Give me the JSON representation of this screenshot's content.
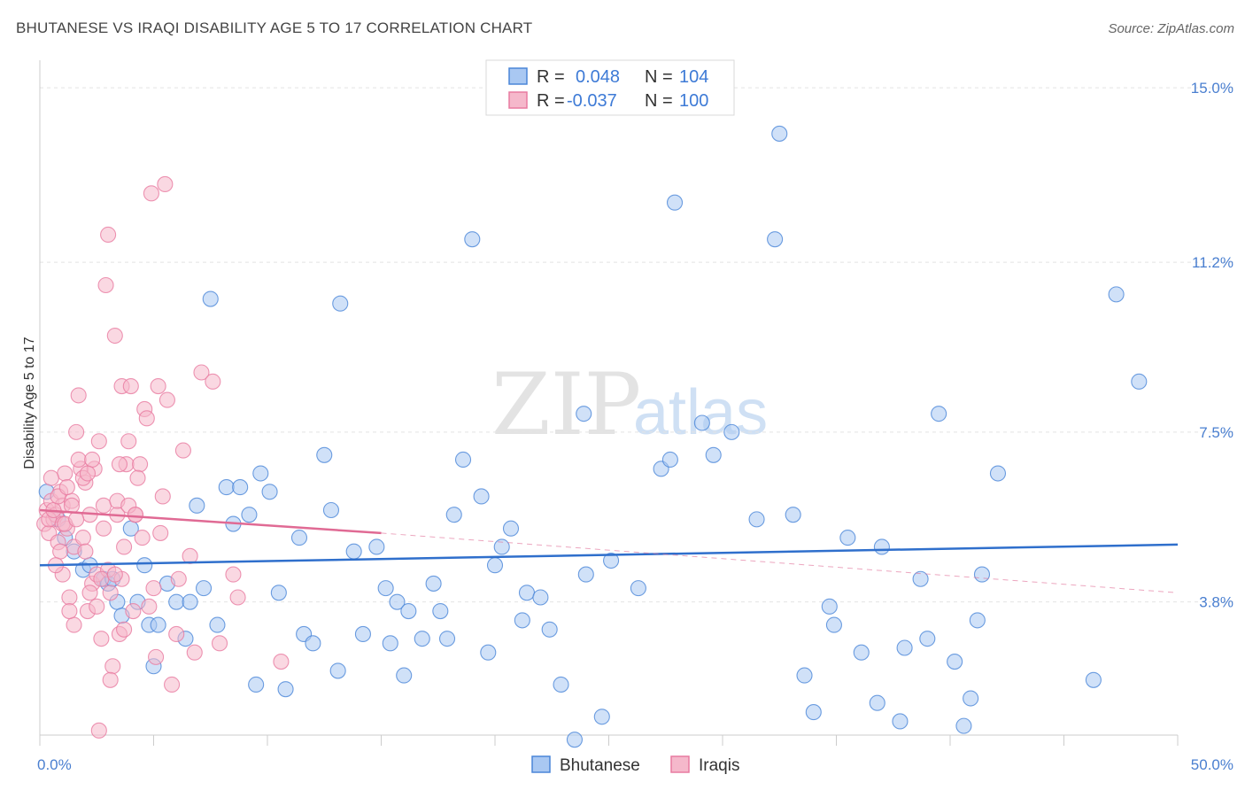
{
  "title": "BHUTANESE VS IRAQI DISABILITY AGE 5 TO 17 CORRELATION CHART",
  "source": "Source: ZipAtlas.com",
  "watermark": {
    "zip": "ZIP",
    "atlas": "atlas"
  },
  "colors": {
    "blue": "#4a86d8",
    "pink": "#e87aa0",
    "blue_fill": "#a9c8f2",
    "pink_fill": "#f5b8cb",
    "blue_line": "#2f6fcc",
    "pink_line": "#e06a94"
  },
  "legend_top": {
    "rows": [
      {
        "r_label": "R = ",
        "r_value": "0.048",
        "n_label": "N = ",
        "n_value": "104"
      },
      {
        "r_label": "R = ",
        "r_value": "-0.037",
        "n_label": "N = ",
        "n_value": "100"
      }
    ]
  },
  "legend_bottom": {
    "items": [
      "Bhutanese",
      "Iraqis"
    ]
  },
  "chart_data": {
    "type": "scatter",
    "ylabel": "Disability Age 5 to 17",
    "xlim": [
      0,
      50
    ],
    "ylim": [
      0.9,
      15.6
    ],
    "x_tick_labels": [
      "0.0%",
      "50.0%"
    ],
    "y_ticks": [
      3.8,
      7.5,
      11.2,
      15.0
    ],
    "y_tick_labels": [
      "3.8%",
      "7.5%",
      "11.2%",
      "15.0%"
    ],
    "grid": true,
    "legend_placement": "top-center",
    "series": [
      {
        "name": "Bhutanese",
        "r": 0.048,
        "n": 104,
        "trend": {
          "x": [
            0,
            50
          ],
          "y": [
            4.6,
            5.05
          ]
        },
        "points": [
          [
            0.3,
            6.2
          ],
          [
            0.8,
            5.6
          ],
          [
            1.1,
            5.2
          ],
          [
            1.5,
            4.9
          ],
          [
            1.9,
            4.5
          ],
          [
            2.2,
            4.6
          ],
          [
            2.8,
            4.3
          ],
          [
            3.0,
            4.2
          ],
          [
            3.2,
            4.3
          ],
          [
            3.4,
            3.8
          ],
          [
            3.6,
            3.5
          ],
          [
            4.0,
            5.4
          ],
          [
            4.3,
            3.8
          ],
          [
            4.6,
            4.6
          ],
          [
            4.8,
            3.3
          ],
          [
            5.0,
            2.4
          ],
          [
            5.2,
            3.3
          ],
          [
            5.6,
            4.2
          ],
          [
            6.0,
            3.8
          ],
          [
            6.4,
            3.0
          ],
          [
            6.6,
            3.8
          ],
          [
            6.9,
            5.9
          ],
          [
            7.2,
            4.1
          ],
          [
            7.5,
            10.4
          ],
          [
            7.8,
            3.3
          ],
          [
            8.2,
            6.3
          ],
          [
            8.5,
            5.5
          ],
          [
            8.8,
            6.3
          ],
          [
            9.2,
            5.7
          ],
          [
            9.5,
            2.0
          ],
          [
            9.7,
            6.6
          ],
          [
            10.1,
            6.2
          ],
          [
            10.5,
            4.0
          ],
          [
            10.8,
            1.9
          ],
          [
            11.4,
            5.2
          ],
          [
            11.6,
            3.1
          ],
          [
            12.0,
            2.9
          ],
          [
            12.5,
            7.0
          ],
          [
            12.8,
            5.8
          ],
          [
            13.1,
            2.3
          ],
          [
            13.2,
            10.3
          ],
          [
            13.8,
            4.9
          ],
          [
            14.2,
            3.1
          ],
          [
            14.8,
            5.0
          ],
          [
            15.2,
            4.1
          ],
          [
            15.4,
            2.9
          ],
          [
            15.7,
            3.8
          ],
          [
            16.0,
            2.2
          ],
          [
            16.2,
            3.6
          ],
          [
            16.8,
            3.0
          ],
          [
            17.3,
            4.2
          ],
          [
            17.6,
            3.6
          ],
          [
            17.9,
            3.0
          ],
          [
            18.2,
            5.7
          ],
          [
            18.6,
            6.9
          ],
          [
            19.0,
            11.7
          ],
          [
            19.4,
            6.1
          ],
          [
            19.7,
            2.7
          ],
          [
            20.0,
            4.6
          ],
          [
            20.3,
            5.0
          ],
          [
            20.7,
            5.4
          ],
          [
            21.2,
            3.4
          ],
          [
            21.4,
            4.0
          ],
          [
            22.0,
            3.9
          ],
          [
            22.4,
            3.2
          ],
          [
            22.9,
            2.0
          ],
          [
            23.5,
            0.8
          ],
          [
            23.9,
            7.9
          ],
          [
            24.0,
            4.4
          ],
          [
            24.7,
            1.3
          ],
          [
            25.1,
            4.7
          ],
          [
            26.3,
            4.1
          ],
          [
            27.3,
            6.7
          ],
          [
            27.7,
            6.9
          ],
          [
            27.9,
            12.5
          ],
          [
            29.1,
            7.7
          ],
          [
            29.6,
            7.0
          ],
          [
            30.4,
            7.5
          ],
          [
            31.5,
            5.6
          ],
          [
            32.3,
            11.7
          ],
          [
            32.5,
            14.0
          ],
          [
            33.1,
            5.7
          ],
          [
            33.6,
            2.2
          ],
          [
            34.0,
            1.4
          ],
          [
            34.7,
            3.7
          ],
          [
            34.9,
            3.3
          ],
          [
            35.5,
            5.2
          ],
          [
            36.1,
            2.7
          ],
          [
            36.8,
            1.6
          ],
          [
            37.0,
            5.0
          ],
          [
            37.8,
            1.2
          ],
          [
            38.0,
            2.8
          ],
          [
            38.7,
            4.3
          ],
          [
            39.0,
            3.0
          ],
          [
            39.5,
            7.9
          ],
          [
            40.2,
            2.5
          ],
          [
            40.6,
            1.1
          ],
          [
            40.9,
            1.7
          ],
          [
            41.2,
            3.4
          ],
          [
            41.4,
            4.4
          ],
          [
            42.1,
            6.6
          ],
          [
            46.3,
            2.1
          ],
          [
            47.3,
            10.5
          ],
          [
            48.3,
            8.6
          ]
        ]
      },
      {
        "name": "Iraqis",
        "r": -0.037,
        "n": 100,
        "trend": {
          "x": [
            0,
            15
          ],
          "y": [
            5.8,
            5.3
          ]
        },
        "trend_extended": {
          "x": [
            15,
            50
          ],
          "y": [
            5.3,
            4.0
          ]
        },
        "points": [
          [
            0.2,
            5.5
          ],
          [
            0.3,
            5.8
          ],
          [
            0.4,
            5.3
          ],
          [
            0.5,
            6.0
          ],
          [
            0.6,
            5.6
          ],
          [
            0.7,
            5.7
          ],
          [
            0.8,
            5.1
          ],
          [
            0.9,
            6.2
          ],
          [
            1.0,
            4.4
          ],
          [
            1.0,
            5.9
          ],
          [
            1.1,
            6.6
          ],
          [
            1.2,
            5.4
          ],
          [
            1.3,
            3.9
          ],
          [
            1.4,
            6.0
          ],
          [
            1.5,
            5.0
          ],
          [
            1.6,
            7.5
          ],
          [
            1.7,
            8.3
          ],
          [
            1.8,
            6.7
          ],
          [
            1.9,
            5.2
          ],
          [
            2.0,
            6.4
          ],
          [
            2.1,
            3.6
          ],
          [
            2.2,
            5.7
          ],
          [
            2.3,
            4.2
          ],
          [
            2.4,
            6.7
          ],
          [
            2.5,
            4.4
          ],
          [
            2.6,
            7.3
          ],
          [
            2.7,
            3.0
          ],
          [
            2.8,
            5.9
          ],
          [
            2.9,
            10.7
          ],
          [
            3.0,
            11.8
          ],
          [
            3.1,
            4.0
          ],
          [
            3.2,
            2.4
          ],
          [
            3.3,
            9.6
          ],
          [
            3.4,
            5.7
          ],
          [
            3.5,
            3.1
          ],
          [
            3.6,
            8.5
          ],
          [
            3.7,
            5.0
          ],
          [
            3.8,
            6.8
          ],
          [
            3.9,
            7.3
          ],
          [
            4.0,
            8.5
          ],
          [
            4.1,
            3.6
          ],
          [
            4.2,
            5.7
          ],
          [
            4.4,
            6.8
          ],
          [
            4.5,
            5.2
          ],
          [
            4.6,
            8.0
          ],
          [
            4.7,
            7.8
          ],
          [
            4.8,
            3.7
          ],
          [
            4.9,
            12.7
          ],
          [
            5.0,
            4.1
          ],
          [
            5.1,
            2.6
          ],
          [
            5.2,
            8.5
          ],
          [
            5.3,
            5.3
          ],
          [
            5.4,
            6.1
          ],
          [
            5.5,
            12.9
          ],
          [
            5.6,
            8.2
          ],
          [
            5.8,
            2.0
          ],
          [
            6.0,
            3.1
          ],
          [
            6.1,
            4.3
          ],
          [
            6.3,
            7.1
          ],
          [
            6.6,
            4.8
          ],
          [
            6.8,
            2.7
          ],
          [
            7.1,
            8.8
          ],
          [
            7.6,
            8.6
          ],
          [
            7.9,
            2.9
          ],
          [
            8.5,
            4.4
          ],
          [
            8.7,
            3.9
          ],
          [
            10.6,
            2.5
          ],
          [
            0.4,
            5.6
          ],
          [
            0.6,
            5.8
          ],
          [
            0.8,
            6.1
          ],
          [
            1.0,
            5.5
          ],
          [
            1.2,
            6.3
          ],
          [
            1.5,
            3.3
          ],
          [
            1.9,
            6.5
          ],
          [
            2.2,
            4.0
          ],
          [
            2.5,
            3.7
          ],
          [
            2.8,
            5.4
          ],
          [
            3.1,
            2.1
          ],
          [
            3.4,
            6.0
          ],
          [
            3.7,
            3.2
          ],
          [
            3.0,
            4.5
          ],
          [
            2.6,
            1.0
          ],
          [
            4.3,
            6.5
          ],
          [
            1.4,
            5.9
          ],
          [
            2.0,
            4.9
          ],
          [
            0.9,
            4.9
          ],
          [
            1.7,
            6.9
          ],
          [
            2.3,
            6.9
          ],
          [
            3.6,
            4.3
          ],
          [
            0.5,
            6.5
          ],
          [
            1.1,
            5.5
          ],
          [
            2.7,
            4.3
          ],
          [
            3.9,
            5.9
          ],
          [
            4.2,
            5.7
          ],
          [
            0.7,
            4.6
          ],
          [
            1.3,
            3.6
          ],
          [
            1.6,
            5.6
          ],
          [
            2.1,
            6.6
          ],
          [
            3.3,
            4.4
          ],
          [
            3.5,
            6.8
          ]
        ]
      }
    ]
  }
}
